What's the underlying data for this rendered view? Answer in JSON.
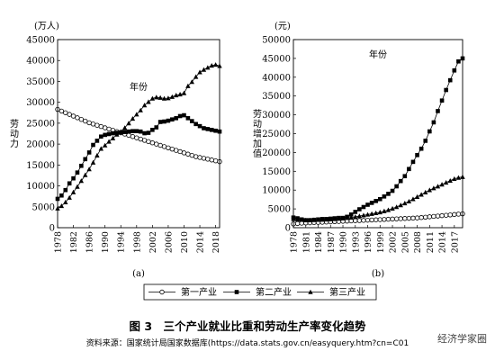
{
  "chart_data": [
    {
      "type": "line",
      "panel_label": "(a)",
      "unit_label": "(万人)",
      "ylabel": "劳动力",
      "xlabel": "年份",
      "ylim": [
        0,
        45000
      ],
      "yticks": [
        0,
        5000,
        10000,
        15000,
        20000,
        25000,
        30000,
        35000,
        40000,
        45000
      ],
      "xlim": [
        1978,
        2019
      ],
      "xticks": [
        1978,
        1982,
        1986,
        1990,
        1994,
        1998,
        2002,
        2006,
        2010,
        2014,
        2018
      ],
      "x": [
        1978,
        1979,
        1980,
        1981,
        1982,
        1983,
        1984,
        1985,
        1986,
        1987,
        1988,
        1989,
        1990,
        1991,
        1992,
        1993,
        1994,
        1995,
        1996,
        1997,
        1998,
        1999,
        2000,
        2001,
        2002,
        2003,
        2004,
        2005,
        2006,
        2007,
        2008,
        2009,
        2010,
        2011,
        2012,
        2013,
        2014,
        2015,
        2016,
        2017,
        2018,
        2019
      ],
      "series": [
        {
          "name": "第一产业",
          "marker": "circle-open",
          "values": [
            28300,
            27900,
            27500,
            27100,
            26700,
            26300,
            25900,
            25500,
            25100,
            24800,
            24500,
            24200,
            23900,
            23600,
            23300,
            23000,
            22700,
            22400,
            22100,
            21800,
            21500,
            21200,
            20900,
            20600,
            20300,
            20000,
            19700,
            19400,
            19100,
            18800,
            18500,
            18200,
            17900,
            17600,
            17300,
            17000,
            16800,
            16600,
            16400,
            16200,
            16000,
            15800
          ]
        },
        {
          "name": "第二产业",
          "marker": "square-filled",
          "values": [
            6900,
            7700,
            9000,
            10600,
            11800,
            13200,
            14800,
            16400,
            18000,
            19800,
            20800,
            21800,
            22200,
            22400,
            22600,
            22700,
            22800,
            22900,
            23000,
            23100,
            23100,
            23000,
            22600,
            22700,
            23400,
            24000,
            25300,
            25400,
            25600,
            25900,
            26200,
            26700,
            26900,
            26200,
            25500,
            24800,
            24300,
            23800,
            23600,
            23400,
            23200,
            23000
          ]
        },
        {
          "name": "第三产业",
          "marker": "triangle-filled",
          "values": [
            4600,
            5200,
            6100,
            7200,
            8500,
            9800,
            11200,
            12600,
            14000,
            15600,
            17300,
            18900,
            19700,
            20600,
            21400,
            22300,
            23000,
            23900,
            25000,
            26100,
            27100,
            28100,
            29300,
            30100,
            30900,
            31200,
            31100,
            30900,
            31000,
            31300,
            31700,
            31900,
            32200,
            33900,
            34900,
            36100,
            37200,
            37800,
            38300,
            38800,
            39000,
            38700
          ]
        }
      ]
    },
    {
      "type": "line",
      "panel_label": "(b)",
      "unit_label": "(元)",
      "ylabel": "劳动增加值",
      "xlabel": "年份",
      "ylim": [
        0,
        50000
      ],
      "yticks": [
        0,
        5000,
        10000,
        15000,
        20000,
        25000,
        30000,
        35000,
        40000,
        45000,
        50000
      ],
      "xlim": [
        1978,
        2019
      ],
      "xticks": [
        1978,
        1981,
        1984,
        1987,
        1990,
        1993,
        1996,
        1999,
        2002,
        2005,
        2008,
        2011,
        2014,
        2017
      ],
      "x": [
        1978,
        1979,
        1980,
        1981,
        1982,
        1983,
        1984,
        1985,
        1986,
        1987,
        1988,
        1989,
        1990,
        1991,
        1992,
        1993,
        1994,
        1995,
        1996,
        1997,
        1998,
        1999,
        2000,
        2001,
        2002,
        2003,
        2004,
        2005,
        2006,
        2007,
        2008,
        2009,
        2010,
        2011,
        2012,
        2013,
        2014,
        2015,
        2016,
        2017,
        2018,
        2019
      ],
      "series": [
        {
          "name": "第一产业",
          "marker": "circle-open",
          "values": [
            1000,
            1100,
            1200,
            1250,
            1300,
            1350,
            1400,
            1450,
            1500,
            1550,
            1600,
            1650,
            1700,
            1750,
            1800,
            1850,
            1900,
            1950,
            2000,
            2050,
            2100,
            2150,
            2200,
            2250,
            2300,
            2350,
            2400,
            2450,
            2500,
            2550,
            2600,
            2700,
            2800,
            2900,
            3000,
            3100,
            3200,
            3300,
            3400,
            3500,
            3600,
            3700
          ]
        },
        {
          "name": "第二产业",
          "marker": "square-filled",
          "values": [
            2700,
            2500,
            2200,
            2000,
            2000,
            2100,
            2200,
            2300,
            2300,
            2400,
            2500,
            2600,
            2600,
            2900,
            3500,
            4200,
            4900,
            5500,
            6100,
            6600,
            7100,
            7600,
            8300,
            9000,
            9800,
            11000,
            12400,
            13700,
            15600,
            17500,
            19300,
            21000,
            23100,
            25600,
            28000,
            31000,
            33800,
            36600,
            39200,
            41800,
            44200,
            45000
          ]
        },
        {
          "name": "第三产业",
          "marker": "triangle-filled",
          "values": [
            2300,
            2200,
            2100,
            2000,
            2000,
            2050,
            2100,
            2150,
            2200,
            2250,
            2300,
            2400,
            2500,
            2600,
            2700,
            2900,
            3100,
            3300,
            3500,
            3700,
            3900,
            4100,
            4400,
            4700,
            5100,
            5500,
            6000,
            6500,
            7000,
            7600,
            8200,
            8800,
            9400,
            10000,
            10500,
            11000,
            11500,
            12000,
            12500,
            13000,
            13300,
            13500
          ]
        }
      ]
    }
  ],
  "legend": {
    "labels": [
      "第一产业",
      "第二产业",
      "第三产业"
    ]
  },
  "caption": {
    "number": "图 3",
    "text": "三个产业就业比重和劳动生产率变化趋势"
  },
  "source": "资料来源：国家统计局国家数据库(https://data.stats.gov.cn/easyquery.htm?cn=C01",
  "watermark": "经济学家圈"
}
